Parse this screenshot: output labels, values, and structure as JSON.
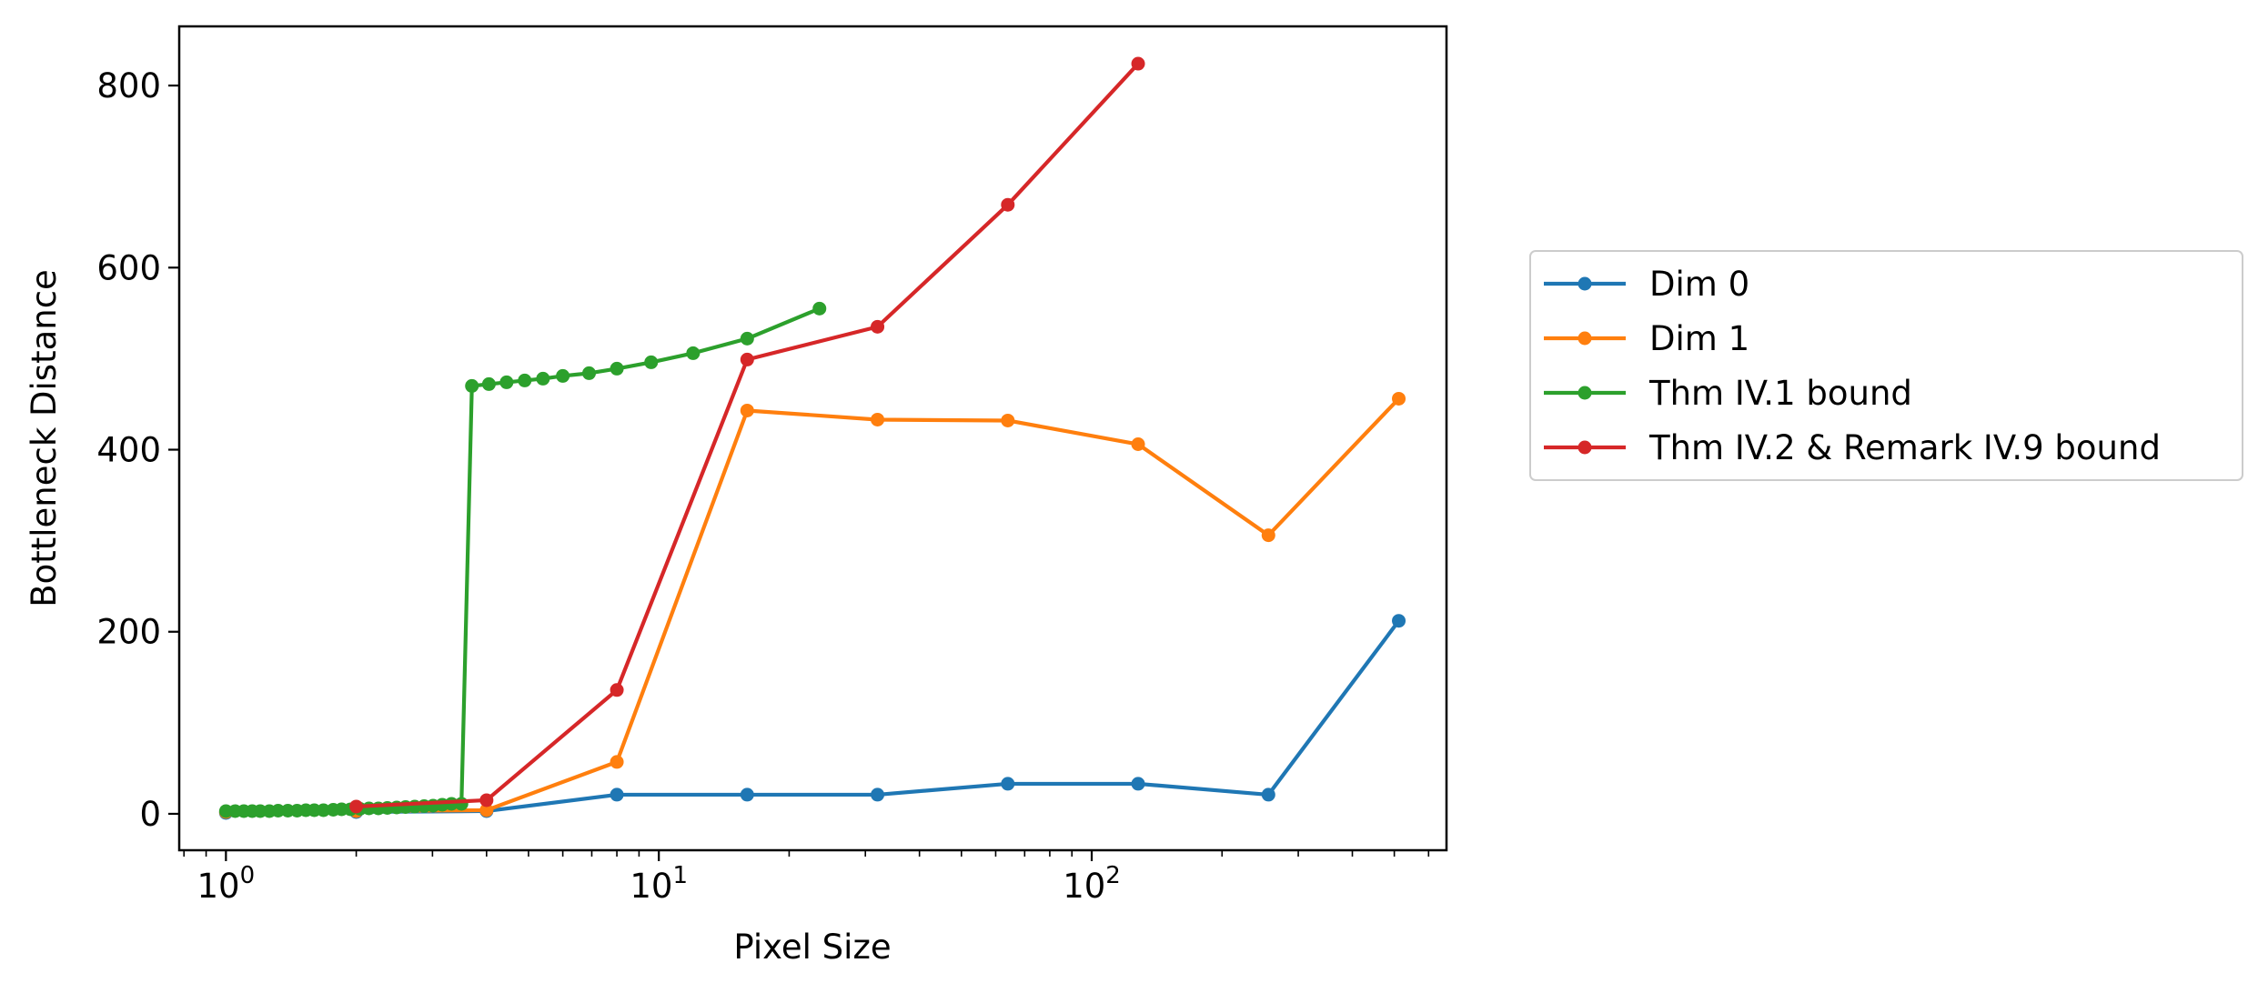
{
  "chart_data": {
    "type": "line",
    "xlabel": "Pixel Size",
    "ylabel": "Bottleneck Distance",
    "xscale": "log",
    "xlim": [
      0.78,
      660
    ],
    "ylim": [
      -40,
      865
    ],
    "x_ticks": [
      {
        "value": 1,
        "base": "10",
        "exp": "0"
      },
      {
        "value": 10,
        "base": "10",
        "exp": "1"
      },
      {
        "value": 100,
        "base": "10",
        "exp": "2"
      }
    ],
    "y_ticks": [
      0,
      200,
      400,
      600,
      800
    ],
    "y_tick_labels": [
      "0",
      "200",
      "400",
      "600",
      "800"
    ],
    "grid": false,
    "legend_position": "outside-right",
    "series": [
      {
        "name": "Dim 0",
        "color": "#1f77b4",
        "points": [
          [
            1,
            1
          ],
          [
            2,
            2
          ],
          [
            4,
            3
          ],
          [
            8,
            21
          ],
          [
            16,
            21
          ],
          [
            32,
            21
          ],
          [
            64,
            33
          ],
          [
            128,
            33
          ],
          [
            256,
            21
          ],
          [
            512,
            212
          ]
        ]
      },
      {
        "name": "Dim 1",
        "color": "#ff7f0e",
        "points": [
          [
            1,
            2
          ],
          [
            2,
            3
          ],
          [
            4,
            4
          ],
          [
            8,
            57
          ],
          [
            16,
            443
          ],
          [
            32,
            433
          ],
          [
            64,
            432
          ],
          [
            128,
            406
          ],
          [
            256,
            306
          ],
          [
            512,
            456
          ]
        ]
      },
      {
        "name": "Thm IV.1 bound",
        "color": "#2ca02c",
        "points": [
          [
            1,
            3
          ],
          [
            1.05,
            3
          ],
          [
            1.1,
            3
          ],
          [
            1.15,
            3
          ],
          [
            1.2,
            3
          ],
          [
            1.26,
            3
          ],
          [
            1.32,
            3.5
          ],
          [
            1.39,
            3.5
          ],
          [
            1.46,
            3.5
          ],
          [
            1.53,
            4
          ],
          [
            1.6,
            4
          ],
          [
            1.68,
            4
          ],
          [
            1.77,
            4.5
          ],
          [
            1.85,
            5
          ],
          [
            1.94,
            5
          ],
          [
            2.04,
            5.5
          ],
          [
            2.14,
            6
          ],
          [
            2.25,
            6
          ],
          [
            2.36,
            6.5
          ],
          [
            2.48,
            7
          ],
          [
            2.6,
            7.5
          ],
          [
            2.73,
            8
          ],
          [
            2.87,
            8.5
          ],
          [
            3.01,
            9
          ],
          [
            3.16,
            10
          ],
          [
            3.32,
            11
          ],
          [
            3.5,
            11
          ],
          [
            3.7,
            470
          ],
          [
            4.05,
            472
          ],
          [
            4.45,
            474
          ],
          [
            4.9,
            476
          ],
          [
            5.4,
            478
          ],
          [
            6.0,
            481
          ],
          [
            6.9,
            484
          ],
          [
            8.0,
            489
          ],
          [
            9.6,
            496
          ],
          [
            12.0,
            506
          ],
          [
            16.0,
            522
          ],
          [
            23.5,
            555
          ]
        ]
      },
      {
        "name": "Thm IV.2 & Remark IV.9 bound",
        "color": "#d62728",
        "points": [
          [
            2,
            8
          ],
          [
            4,
            15
          ],
          [
            8,
            136
          ],
          [
            16,
            499
          ],
          [
            32,
            535
          ],
          [
            64,
            669
          ],
          [
            128,
            824
          ]
        ]
      }
    ]
  }
}
